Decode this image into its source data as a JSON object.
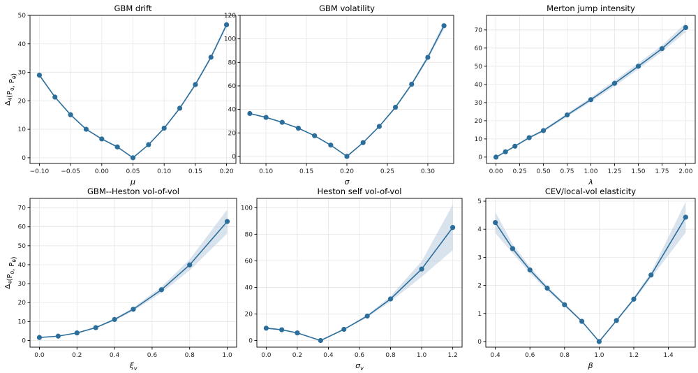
{
  "colors": {
    "line": "#2c6e9b",
    "band": "#b9cce0"
  },
  "chart_data": [
    {
      "type": "line",
      "title": "GBM drift",
      "xlabel": "μ",
      "ylabel": "Δ₄(P₀, P_θ)",
      "x": [
        -0.1,
        -0.075,
        -0.05,
        -0.025,
        0.0,
        0.025,
        0.05,
        0.075,
        0.1,
        0.125,
        0.15,
        0.175,
        0.2
      ],
      "y": [
        29.0,
        21.3,
        15.1,
        10.0,
        6.6,
        3.8,
        0.0,
        4.6,
        10.4,
        17.4,
        25.7,
        35.3,
        46.7
      ],
      "band_low": [
        28.6,
        21.0,
        14.8,
        9.8,
        6.4,
        3.6,
        0.0,
        4.4,
        10.1,
        17.0,
        25.2,
        34.7,
        45.9
      ],
      "band_high": [
        29.4,
        21.6,
        15.4,
        10.2,
        6.8,
        4.0,
        0.0,
        4.8,
        10.7,
        17.8,
        26.2,
        35.9,
        47.5
      ],
      "xlim": [
        -0.115,
        0.215
      ],
      "ylim": [
        -2,
        50
      ],
      "xticks": [
        -0.1,
        -0.05,
        0.0,
        0.05,
        0.1,
        0.15,
        0.2
      ],
      "xtick_labels": [
        "−0.10",
        "−0.05",
        "0.00",
        "0.05",
        "0.10",
        "0.15",
        "0.20"
      ],
      "yticks": [
        0,
        10,
        20,
        30,
        40,
        50
      ],
      "ytick_labels": [
        "0",
        "10",
        "20",
        "30",
        "40",
        "50"
      ],
      "grid": true
    },
    {
      "type": "line",
      "title": "GBM volatility",
      "xlabel": "σ",
      "ylabel": "",
      "x": [
        0.08,
        0.1,
        0.12,
        0.14,
        0.16,
        0.18,
        0.2,
        0.22,
        0.24,
        0.26,
        0.28,
        0.3,
        0.32
      ],
      "y": [
        36.5,
        33.2,
        29.0,
        24.0,
        17.6,
        9.6,
        0.0,
        11.7,
        25.5,
        41.8,
        61.4,
        84.3,
        111.2
      ],
      "band_low": [
        36.0,
        32.7,
        28.6,
        23.6,
        17.3,
        9.4,
        0.0,
        11.4,
        24.9,
        40.9,
        60.1,
        82.3,
        108.2
      ],
      "band_high": [
        37.0,
        33.7,
        29.4,
        24.4,
        17.9,
        9.8,
        0.0,
        12.0,
        26.1,
        42.7,
        62.7,
        86.3,
        114.2
      ],
      "xlim": [
        0.068,
        0.332
      ],
      "ylim": [
        -6,
        120
      ],
      "xticks": [
        0.1,
        0.15,
        0.2,
        0.25,
        0.3
      ],
      "xtick_labels": [
        "0.10",
        "0.15",
        "0.20",
        "0.25",
        "0.30"
      ],
      "yticks": [
        0,
        20,
        40,
        60,
        80,
        100,
        120
      ],
      "ytick_labels": [
        "0",
        "20",
        "40",
        "60",
        "80",
        "100",
        "120"
      ],
      "grid": true
    },
    {
      "type": "line",
      "title": "Merton jump intensity",
      "xlabel": "λ",
      "ylabel": "",
      "x": [
        0.0,
        0.1,
        0.2,
        0.35,
        0.5,
        0.75,
        1.0,
        1.25,
        1.5,
        1.75,
        2.0
      ],
      "y": [
        0.0,
        2.9,
        6.0,
        10.7,
        14.6,
        23.2,
        31.6,
        40.6,
        50.0,
        59.7,
        71.3
      ],
      "band_low": [
        0.0,
        2.7,
        5.6,
        10.1,
        13.9,
        22.2,
        30.4,
        39.0,
        48.3,
        57.9,
        68.8
      ],
      "band_high": [
        0.0,
        3.1,
        6.4,
        11.3,
        15.3,
        24.2,
        32.8,
        42.2,
        51.7,
        61.5,
        73.8
      ],
      "xlim": [
        -0.1,
        2.1
      ],
      "ylim": [
        -3.5,
        78
      ],
      "xticks": [
        0.0,
        0.25,
        0.5,
        0.75,
        1.0,
        1.25,
        1.5,
        1.75,
        2.0
      ],
      "xtick_labels": [
        "0.00",
        "0.25",
        "0.50",
        "0.75",
        "1.00",
        "1.25",
        "1.50",
        "1.75",
        "2.00"
      ],
      "yticks": [
        0,
        10,
        20,
        30,
        40,
        50,
        60,
        70
      ],
      "ytick_labels": [
        "0",
        "10",
        "20",
        "30",
        "40",
        "50",
        "60",
        "70"
      ],
      "grid": true
    },
    {
      "type": "line",
      "title": "GBM--Heston vol-of-vol",
      "xlabel": "ξᵥ",
      "ylabel": "Δ₄(P₀, P_θ)",
      "x": [
        0.0,
        0.1,
        0.2,
        0.3,
        0.4,
        0.5,
        0.65,
        0.8,
        1.0
      ],
      "y": [
        1.6,
        2.3,
        4.0,
        6.8,
        11.1,
        16.5,
        26.8,
        39.9,
        62.8
      ],
      "band_low": [
        1.4,
        2.1,
        3.7,
        6.4,
        10.5,
        15.6,
        25.2,
        37.0,
        56.5
      ],
      "band_high": [
        1.8,
        2.5,
        4.3,
        7.2,
        11.7,
        17.4,
        28.4,
        42.8,
        69.1
      ],
      "xlim": [
        -0.05,
        1.05
      ],
      "ylim": [
        -3.5,
        75
      ],
      "xticks": [
        0.0,
        0.2,
        0.4,
        0.6,
        0.8,
        1.0
      ],
      "xtick_labels": [
        "0.0",
        "0.2",
        "0.4",
        "0.6",
        "0.8",
        "1.0"
      ],
      "yticks": [
        0,
        10,
        20,
        30,
        40,
        50,
        60,
        70
      ],
      "ytick_labels": [
        "0",
        "10",
        "20",
        "30",
        "40",
        "50",
        "60",
        "70"
      ],
      "grid": true
    },
    {
      "type": "line",
      "title": "Heston self vol-of-vol",
      "xlabel": "σᵥ",
      "ylabel": "",
      "x": [
        0.0,
        0.1,
        0.2,
        0.35,
        0.5,
        0.65,
        0.8,
        1.0,
        1.2
      ],
      "y": [
        9.3,
        8.1,
        5.7,
        0.0,
        8.4,
        18.4,
        31.3,
        53.8,
        85.1
      ],
      "band_low": [
        8.9,
        7.7,
        5.4,
        0.0,
        7.9,
        17.4,
        29.3,
        47.9,
        68.0
      ],
      "band_high": [
        9.7,
        8.5,
        6.0,
        0.0,
        8.9,
        19.4,
        33.3,
        59.7,
        102.2
      ],
      "xlim": [
        -0.06,
        1.26
      ],
      "ylim": [
        -5,
        107
      ],
      "xticks": [
        0.0,
        0.2,
        0.4,
        0.6,
        0.8,
        1.0,
        1.2
      ],
      "xtick_labels": [
        "0.0",
        "0.2",
        "0.4",
        "0.6",
        "0.8",
        "1.0",
        "1.2"
      ],
      "yticks": [
        0,
        20,
        40,
        60,
        80,
        100
      ],
      "ytick_labels": [
        "0",
        "20",
        "40",
        "60",
        "80",
        "100"
      ],
      "grid": true
    },
    {
      "type": "line",
      "title": "CEV/local-vol elasticity",
      "xlabel": "β",
      "ylabel": "",
      "x": [
        0.4,
        0.5,
        0.6,
        0.7,
        0.8,
        0.9,
        1.0,
        1.1,
        1.2,
        1.3,
        1.5
      ],
      "y": [
        4.24,
        3.31,
        2.55,
        1.9,
        1.31,
        0.72,
        0.0,
        0.75,
        1.51,
        2.37,
        4.43
      ],
      "band_low": [
        3.86,
        3.15,
        2.44,
        1.82,
        1.26,
        0.69,
        0.0,
        0.72,
        1.45,
        2.27,
        3.88
      ],
      "band_high": [
        4.62,
        3.47,
        2.66,
        1.98,
        1.36,
        0.75,
        0.0,
        0.78,
        1.57,
        2.47,
        4.98
      ],
      "xlim": [
        0.345,
        1.555
      ],
      "ylim": [
        -0.2,
        5.1
      ],
      "xticks": [
        0.4,
        0.6,
        0.8,
        1.0,
        1.2,
        1.4
      ],
      "xtick_labels": [
        "0.4",
        "0.6",
        "0.8",
        "1.0",
        "1.2",
        "1.4"
      ],
      "yticks": [
        0,
        1,
        2,
        3,
        4,
        5
      ],
      "ytick_labels": [
        "0",
        "1",
        "2",
        "3",
        "4",
        "5"
      ],
      "grid": true
    }
  ]
}
